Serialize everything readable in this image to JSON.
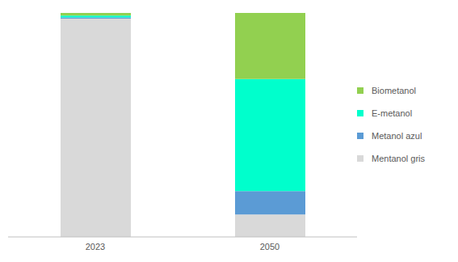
{
  "chart_data": {
    "type": "bar",
    "stacked": true,
    "categories": [
      "2023",
      "2050"
    ],
    "series": [
      {
        "name": "Mentanol gris",
        "color": "#d9d9d9",
        "values": [
          97.5,
          10
        ]
      },
      {
        "name": "Metanol azul",
        "color": "#5b9bd5",
        "values": [
          0.5,
          10.5
        ]
      },
      {
        "name": "E-metanol",
        "color": "#00ffcc",
        "values": [
          0.8,
          50
        ]
      },
      {
        "name": "Biometanol",
        "color": "#92d050",
        "values": [
          1.2,
          29.5
        ]
      }
    ],
    "ylim": [
      0,
      100
    ],
    "legend": "right",
    "tick_labels": "x",
    "grid": false
  }
}
